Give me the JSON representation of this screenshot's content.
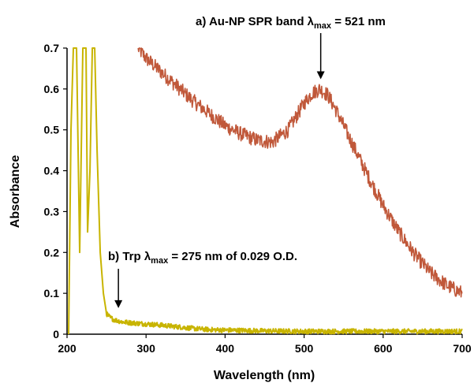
{
  "chart_data": {
    "type": "line",
    "xlabel": "Wavelength (nm)",
    "ylabel": "Absorbance",
    "xlim": [
      200,
      700
    ],
    "ylim": [
      0,
      0.7
    ],
    "x_ticks": [
      "200",
      "300",
      "400",
      "500",
      "600",
      "700"
    ],
    "y_ticks": [
      "0",
      "0.1",
      "0.2",
      "0.3",
      "0.4",
      "0.5",
      "0.6",
      "0.7"
    ],
    "grid": false,
    "legend": "none",
    "series": [
      {
        "key": "au_np",
        "color": "#c0583a",
        "x": [
          290,
          300,
          320,
          340,
          360,
          380,
          400,
          420,
          440,
          460,
          480,
          500,
          510,
          520,
          530,
          540,
          560,
          580,
          600,
          620,
          640,
          660,
          680,
          700
        ],
        "y": [
          0.7,
          0.675,
          0.64,
          0.605,
          0.57,
          0.54,
          0.51,
          0.49,
          0.475,
          0.47,
          0.5,
          0.565,
          0.59,
          0.6,
          0.585,
          0.55,
          0.47,
          0.39,
          0.315,
          0.25,
          0.195,
          0.15,
          0.12,
          0.1
        ]
      },
      {
        "key": "trp",
        "color": "#c8b400",
        "x": [
          202,
          205,
          208,
          212,
          216,
          220,
          224,
          226,
          229,
          232,
          235,
          238,
          242,
          246,
          250,
          255,
          260,
          270,
          280,
          300,
          320,
          340,
          360,
          380,
          400,
          450,
          500,
          550,
          600,
          650,
          700
        ],
        "y": [
          0.0,
          0.5,
          0.7,
          0.7,
          0.2,
          0.7,
          0.7,
          0.25,
          0.4,
          0.7,
          0.7,
          0.45,
          0.2,
          0.1,
          0.05,
          0.04,
          0.035,
          0.03,
          0.028,
          0.025,
          0.022,
          0.018,
          0.014,
          0.011,
          0.01,
          0.008,
          0.007,
          0.007,
          0.007,
          0.007,
          0.007
        ]
      }
    ],
    "annotations": [
      {
        "key": "au_np",
        "prefix": "a) Au-NP SPR band  λ",
        "sub": "max",
        "suffix": " = 521 nm",
        "arrow_x": 521,
        "arrow_y": 0.62
      },
      {
        "key": "trp",
        "prefix": "b) Trp λ",
        "sub": "max",
        "suffix": " = 275 nm of 0.029 O.D.",
        "arrow_x": 265,
        "arrow_y": 0.06
      }
    ]
  }
}
